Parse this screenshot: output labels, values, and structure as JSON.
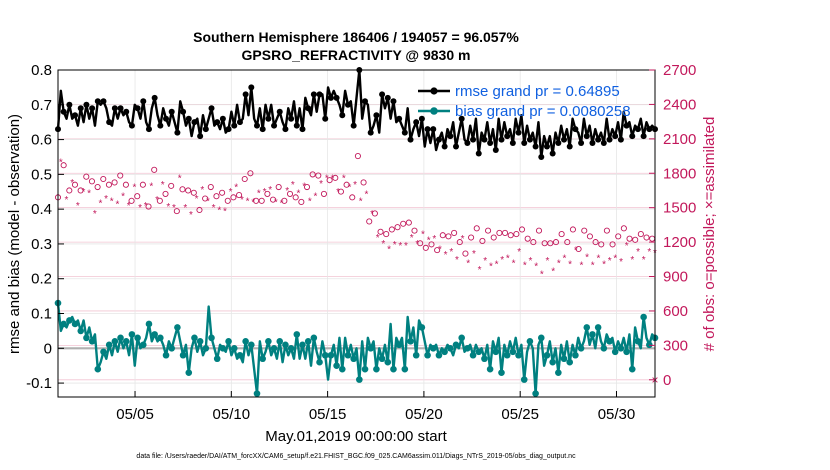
{
  "chart_data": {
    "type": "line",
    "title": "Southern Hemisphere 186406 / 194057 = 96.057%",
    "subtitle": "GPSRO_REFRACTIVITY @ 9830 m",
    "xlabel": "May.01,2019 00:00:00 start",
    "ylabel_left": "rmse and bias (model - observation)",
    "ylabel_right": "# of obs: o=possible; ×=assimilated",
    "footer": "data file: /Users/raeder/DAI/ATM_forcXX/CAM6_setup/f.e21.FHIST_BGC.f09_025.CAM6assim.011/Diags_NTrS_2019-05/obs_diag_output.nc",
    "x_tick_labels": [
      "05/05",
      "05/10",
      "05/15",
      "05/20",
      "05/25",
      "05/30"
    ],
    "x_tick_days": [
      5,
      10,
      15,
      20,
      25,
      30
    ],
    "xlim_days": [
      1,
      32
    ],
    "ylim_left": [
      -0.14,
      0.8
    ],
    "yticks_left": [
      "-0.1",
      "0",
      "0.1",
      "0.2",
      "0.3",
      "0.4",
      "0.5",
      "0.6",
      "0.7",
      "0.8"
    ],
    "ylim_right": [
      -150,
      2700
    ],
    "yticks_right": [
      "0",
      "300",
      "600",
      "900",
      "1200",
      "1500",
      "1800",
      "2100",
      "2400",
      "2700"
    ],
    "legend": [
      {
        "label": "rmse grand pr = 0.64895",
        "color": "#000000"
      },
      {
        "label": "bias grand pr = 0.0080258",
        "color": "#008080"
      }
    ],
    "colors": {
      "rmse": "#000000",
      "bias": "#008080",
      "obs": "#c2185b",
      "zero_line": "#b0b0b0",
      "grid": "#f2c4d2"
    },
    "series": [
      {
        "name": "rmse",
        "axis": "left",
        "values": [
          0.63,
          0.74,
          0.68,
          0.66,
          0.7,
          0.66,
          0.67,
          0.64,
          0.69,
          0.65,
          0.7,
          0.66,
          0.69,
          0.64,
          0.71,
          0.7,
          0.71,
          0.69,
          0.65,
          0.64,
          0.69,
          0.66,
          0.69,
          0.67,
          0.68,
          0.65,
          0.64,
          0.7,
          0.69,
          0.66,
          0.71,
          0.65,
          0.63,
          0.69,
          0.72,
          0.67,
          0.64,
          0.69,
          0.66,
          0.64,
          0.68,
          0.65,
          0.62,
          0.71,
          0.68,
          0.64,
          0.66,
          0.61,
          0.65,
          0.66,
          0.61,
          0.67,
          0.63,
          0.66,
          0.69,
          0.64,
          0.65,
          0.63,
          0.66,
          0.62,
          0.63,
          0.68,
          0.64,
          0.7,
          0.65,
          0.66,
          0.73,
          0.67,
          0.75,
          0.66,
          0.64,
          0.69,
          0.63,
          0.7,
          0.66,
          0.7,
          0.64,
          0.66,
          0.68,
          0.65,
          0.63,
          0.69,
          0.66,
          0.71,
          0.64,
          0.69,
          0.63,
          0.72,
          0.69,
          0.67,
          0.73,
          0.68,
          0.73,
          0.73,
          0.66,
          0.75,
          0.72,
          0.74,
          0.72,
          0.7,
          0.67,
          0.74,
          0.7,
          0.71,
          0.64,
          0.72,
          0.8,
          0.66,
          0.71,
          0.7,
          0.62,
          0.64,
          0.67,
          0.62,
          0.73,
          0.69,
          0.72,
          0.66,
          0.71,
          0.65,
          0.66,
          0.64,
          0.62,
          0.69,
          0.6,
          0.63,
          0.65,
          0.61,
          0.66,
          0.58,
          0.63,
          0.59,
          0.63,
          0.57,
          0.6,
          0.62,
          0.58,
          0.63,
          0.61,
          0.65,
          0.58,
          0.62,
          0.66,
          0.6,
          0.59,
          0.64,
          0.6,
          0.66,
          0.56,
          0.62,
          0.6,
          0.65,
          0.59,
          0.63,
          0.57,
          0.66,
          0.6,
          0.65,
          0.61,
          0.63,
          0.59,
          0.66,
          0.62,
          0.67,
          0.59,
          0.64,
          0.6,
          0.62,
          0.58,
          0.65,
          0.55,
          0.61,
          0.58,
          0.61,
          0.56,
          0.62,
          0.59,
          0.64,
          0.6,
          0.63,
          0.58,
          0.66,
          0.63,
          0.62,
          0.59,
          0.66,
          0.61,
          0.64,
          0.59,
          0.63,
          0.6,
          0.62,
          0.59,
          0.66,
          0.6,
          0.63,
          0.61,
          0.65,
          0.6,
          0.68,
          0.64,
          0.65,
          0.61,
          0.64,
          0.63,
          0.66,
          0.61,
          0.65,
          0.63,
          0.64,
          0.63
        ]
      },
      {
        "name": "bias",
        "axis": "left",
        "values": [
          0.13,
          0.05,
          0.07,
          0.06,
          0.08,
          0.09,
          0.07,
          0.08,
          0.05,
          0.08,
          0.03,
          0.06,
          0.02,
          0.04,
          -0.06,
          -0.04,
          -0.01,
          -0.03,
          0.01,
          -0.02,
          0.02,
          -0.01,
          0.03,
          0.0,
          0.02,
          -0.02,
          0.04,
          -0.05,
          0.03,
          0.0,
          0.01,
          0.03,
          0.07,
          0.02,
          0.04,
          0.02,
          0.03,
          0.01,
          -0.02,
          0.02,
          0.0,
          0.03,
          0.06,
          0.02,
          -0.02,
          0.01,
          -0.07,
          0.0,
          0.03,
          -0.01,
          0.02,
          -0.02,
          0.0,
          0.12,
          0.03,
          0.0,
          -0.03,
          0.01,
          0.0,
          -0.01,
          0.02,
          -0.02,
          0.0,
          -0.03,
          -0.02,
          -0.04,
          0.02,
          -0.02,
          0.01,
          -0.06,
          -0.13,
          0.02,
          -0.03,
          -0.01,
          0.02,
          -0.02,
          0.0,
          -0.03,
          0.02,
          -0.04,
          0.01,
          -0.02,
          0.0,
          -0.03,
          0.04,
          -0.03,
          0.01,
          -0.03,
          0.02,
          -0.05,
          0.03,
          -0.01,
          -0.04,
          0.02,
          -0.02,
          -0.09,
          -0.02,
          0.01,
          -0.05,
          0.03,
          -0.06,
          0.03,
          -0.02,
          0.01,
          -0.03,
          0.0,
          -0.09,
          0.02,
          -0.06,
          0.03,
          0.0,
          0.02,
          -0.06,
          0.0,
          -0.03,
          0.01,
          -0.04,
          0.07,
          -0.06,
          0.03,
          0.01,
          0.03,
          -0.06,
          0.09,
          0.02,
          0.06,
          -0.02,
          0.08,
          0.06,
          0.02,
          -0.02,
          0.01,
          0.0,
          0.01,
          -0.02,
          0.0,
          -0.01,
          0.01,
          0.0,
          -0.02,
          0.01,
          0.0,
          0.03,
          -0.01,
          0.0,
          0.01,
          -0.02,
          0.01,
          -0.01,
          0.0,
          -0.03,
          0.01,
          -0.06,
          0.02,
          -0.01,
          0.03,
          -0.07,
          0.01,
          -0.02,
          0.02,
          -0.01,
          0.03,
          -0.02,
          0.01,
          -0.09,
          -0.01,
          0.02,
          0.0,
          -0.13,
          0.01,
          0.03,
          -0.05,
          -0.02,
          0.02,
          -0.04,
          0.0,
          -0.07,
          0.01,
          -0.03,
          0.02,
          -0.04,
          0.01,
          -0.02,
          0.03,
          0.0,
          0.02,
          0.06,
          0.01,
          0.04,
          0.0,
          0.06,
          0.02,
          0.0,
          0.04,
          0.02,
          0.03,
          -0.01,
          0.02,
          0.0,
          0.03,
          -0.01,
          0.04,
          -0.06,
          0.06,
          0.02,
          0.0,
          0.09,
          0.03,
          0.01,
          0.04,
          0.03
        ]
      },
      {
        "name": "possible",
        "axis": "right",
        "values": [
          1590,
          1960,
          1870,
          1630,
          1650,
          1790,
          1700,
          1580,
          1650,
          1700,
          1770,
          1690,
          1730,
          1510,
          1680,
          1600,
          1750,
          1640,
          1700,
          1620,
          1720,
          1590,
          1780,
          1660,
          1700,
          1580,
          1560,
          1740,
          1600,
          1560,
          1700,
          1580,
          1510,
          1750,
          1830,
          1630,
          1560,
          1760,
          1620,
          1570,
          1690,
          1560,
          1470,
          1820,
          1660,
          1560,
          1650,
          1500,
          1630,
          1640,
          1480,
          1720,
          1580,
          1620,
          1680,
          1560,
          1600,
          1540,
          1630,
          1530,
          1560,
          1700,
          1590,
          1740,
          1610,
          1630,
          1750,
          1620,
          1800,
          1610,
          1560,
          1690,
          1560,
          1700,
          1620,
          1720,
          1570,
          1610,
          1680,
          1600,
          1560,
          1710,
          1620,
          1760,
          1590,
          1690,
          1550,
          1750,
          1680,
          1620,
          1790,
          1660,
          1780,
          1770,
          1620,
          1820,
          1740,
          1820,
          1760,
          1700,
          1640,
          1820,
          1700,
          1740,
          1590,
          1760,
          1950,
          1620,
          1720,
          1680,
          1380,
          1510,
          1450,
          1300,
          1290,
          1250,
          1270,
          1200,
          1310,
          1240,
          1330,
          1230,
          1360,
          1230,
          1370,
          1300,
          1300,
          1250,
          1190,
          1330,
          1150,
          1280,
          1180,
          1290,
          1130,
          1200,
          1260,
          1150,
          1250,
          1180,
          1280,
          1110,
          1200,
          1290,
          1100,
          1080,
          1240,
          1160,
          1320,
          1020,
          1210,
          1100,
          1300,
          1050,
          1240,
          1070,
          1280,
          1110,
          1280,
          1120,
          1260,
          1080,
          1270,
          1180,
          1310,
          1060,
          1230,
          1100,
          1200,
          1050,
          1300,
          980,
          1190,
          1100,
          1190,
          1010,
          1200,
          1080,
          1270,
          1120,
          1200,
          1070,
          1310,
          1190,
          1140,
          1060,
          1300,
          1130,
          1250,
          1060,
          1200,
          1120,
          1180,
          1070,
          1300,
          1100,
          1180,
          1120,
          1250,
          1090,
          1320,
          1230,
          1230,
          1110,
          1220,
          1180,
          1270,
          1110,
          1240,
          1180,
          1230,
          1170
        ]
      },
      {
        "name": "assimilated",
        "axis": "right",
        "values": [
          1530,
          1900,
          1810,
          1570,
          1590,
          1720,
          1630,
          1520,
          1590,
          1640,
          1710,
          1630,
          1670,
          1450,
          1620,
          1540,
          1690,
          1580,
          1640,
          1560,
          1660,
          1530,
          1720,
          1600,
          1640,
          1520,
          1500,
          1680,
          1540,
          1500,
          1640,
          1520,
          1450,
          1690,
          1770,
          1570,
          1500,
          1700,
          1560,
          1510,
          1630,
          1500,
          1410,
          1760,
          1600,
          1500,
          1590,
          1440,
          1570,
          1580,
          1420,
          1660,
          1520,
          1560,
          1620,
          1500,
          1540,
          1480,
          1570,
          1470,
          1500,
          1640,
          1530,
          1680,
          1550,
          1570,
          1690,
          1560,
          1740,
          1550,
          1500,
          1630,
          1500,
          1640,
          1560,
          1660,
          1510,
          1550,
          1620,
          1540,
          1500,
          1650,
          1560,
          1700,
          1530,
          1630,
          1490,
          1690,
          1620,
          1560,
          1730,
          1600,
          1720,
          1710,
          1560,
          1760,
          1680,
          1760,
          1700,
          1640,
          1580,
          1760,
          1640,
          1680,
          1530,
          1700,
          1890,
          1560,
          1660,
          1620,
          1320,
          1450,
          1390,
          1240,
          1230,
          1190,
          1210,
          1140,
          1250,
          1180,
          1270,
          1170,
          1300,
          1170,
          1310,
          1240,
          1240,
          1190,
          1130,
          1270,
          1090,
          1220,
          1120,
          1230,
          1070,
          1140,
          1200,
          1090,
          1190,
          1120,
          1220,
          1050,
          1140,
          1230,
          1040,
          1020,
          1180,
          1100,
          1260,
          960,
          1150,
          1040,
          1240,
          990,
          1180,
          1010,
          1220,
          1050,
          1220,
          1060,
          1200,
          1020,
          1210,
          1120,
          1250,
          1000,
          1170,
          1040,
          1140,
          990,
          1240,
          920,
          1130,
          1040,
          1130,
          950,
          1140,
          1020,
          1210,
          1060,
          1140,
          1010,
          1250,
          1130,
          1080,
          1000,
          1240,
          1070,
          1190,
          1000,
          1140,
          1060,
          1120,
          1010,
          1240,
          1040,
          1120,
          1060,
          1190,
          1030,
          1260,
          1170,
          1170,
          1050,
          1160,
          1120,
          1210,
          1050,
          1180,
          1120,
          1170,
          1110
        ]
      }
    ],
    "outlier_marker": {
      "day": 32,
      "value": 0,
      "axis": "right",
      "symbol": "×"
    }
  }
}
